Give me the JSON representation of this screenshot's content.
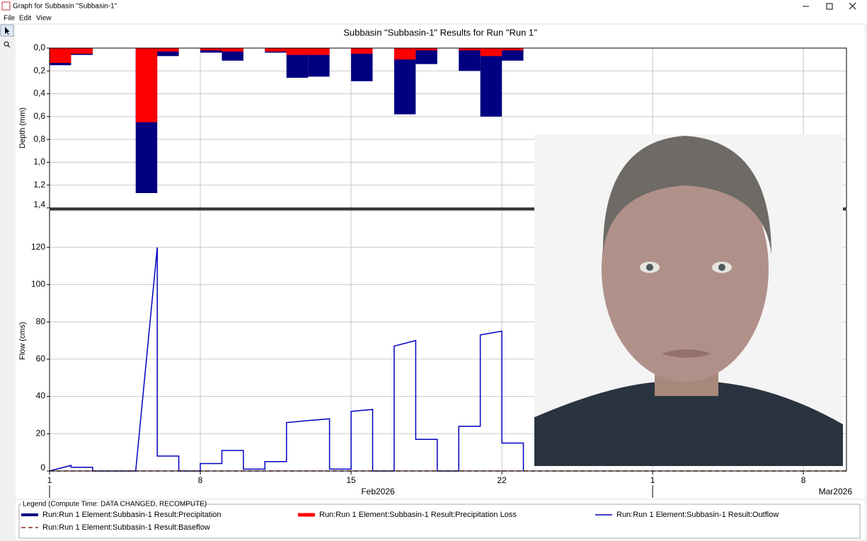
{
  "window": {
    "title": "Graph for Subbasin \"Subbasin-1\"",
    "menu": [
      "File",
      "Edit",
      "View"
    ]
  },
  "chart_data": [
    {
      "type": "bar",
      "title": "Subbasin \"Subbasin-1\" Results for Run \"Run 1\"",
      "y_label": "Depth (mm)",
      "y_inverted": true,
      "x": [
        "2026-02-01",
        "2026-02-02",
        "2026-02-05",
        "2026-02-06",
        "2026-02-08",
        "2026-02-09",
        "2026-02-11",
        "2026-02-12",
        "2026-02-13",
        "2026-02-15",
        "2026-02-17",
        "2026-02-18",
        "2026-02-20",
        "2026-02-21",
        "2026-02-22"
      ],
      "series": [
        {
          "name": "Run:Run 1 Element:Subbasin-1 Result:Precipitation",
          "color": "#000080",
          "values": [
            0.15,
            0.06,
            1.27,
            0.07,
            0.04,
            0.11,
            0.04,
            0.26,
            0.25,
            0.29,
            0.58,
            0.14,
            0.2,
            0.6,
            0.11
          ]
        },
        {
          "name": "Run:Run 1 Element:Subbasin-1 Result:Precipitation Loss",
          "color": "#ff0000",
          "values": [
            0.13,
            0.05,
            0.65,
            0.03,
            0.02,
            0.03,
            0.03,
            0.06,
            0.06,
            0.05,
            0.1,
            0.02,
            0.02,
            0.07,
            0.02
          ]
        }
      ],
      "xlim": [
        "2026-02-01",
        "2026-03-10"
      ],
      "ylim": [
        0,
        1.4
      ],
      "yticks": [
        {
          "value": 0,
          "label": "0,0"
        },
        {
          "value": 0.2,
          "label": "0,2"
        },
        {
          "value": 0.4,
          "label": "0,4"
        },
        {
          "value": 0.6,
          "label": "0,6"
        },
        {
          "value": 0.8,
          "label": "0,8"
        },
        {
          "value": 1.0,
          "label": "1,0"
        },
        {
          "value": 1.2,
          "label": "1,2"
        },
        {
          "value": 1.4,
          "label": "1,4"
        }
      ],
      "grid": true
    },
    {
      "type": "line",
      "y_label": "Flow (cms)",
      "series": [
        {
          "name": "Run:Run 1 Element:Subbasin-1 Result:Outflow",
          "color": "#0000c0",
          "dashed": false,
          "x": [
            "2026-02-01",
            "2026-02-02",
            "2026-02-02",
            "2026-02-03",
            "2026-02-03",
            "2026-02-05",
            "2026-02-06",
            "2026-02-06",
            "2026-02-07",
            "2026-02-07",
            "2026-02-08",
            "2026-02-08",
            "2026-02-09",
            "2026-02-09",
            "2026-02-10",
            "2026-02-10",
            "2026-02-11",
            "2026-02-11",
            "2026-02-12",
            "2026-02-12",
            "2026-02-13",
            "2026-02-14",
            "2026-02-14",
            "2026-02-15",
            "2026-02-15",
            "2026-02-16",
            "2026-02-16",
            "2026-02-17",
            "2026-02-17",
            "2026-02-18",
            "2026-02-18",
            "2026-02-19",
            "2026-02-19",
            "2026-02-20",
            "2026-02-20",
            "2026-02-21",
            "2026-02-21",
            "2026-02-22",
            "2026-02-22",
            "2026-02-23",
            "2026-02-23"
          ],
          "values": [
            0,
            3,
            2,
            2,
            0,
            0,
            120,
            8,
            8,
            0,
            0,
            4,
            4,
            11,
            11,
            1,
            1,
            5,
            5,
            26,
            27,
            28,
            1,
            1,
            32,
            33,
            0,
            0,
            67,
            70,
            17,
            17,
            0,
            0,
            24,
            24,
            73,
            75,
            15,
            15,
            0
          ]
        },
        {
          "name": "Run:Run 1 Element:Subbasin-1 Result:Baseflow",
          "color": "#8b2a1a",
          "dashed": true,
          "x": [
            "2026-02-01",
            "2026-03-10"
          ],
          "values": [
            0,
            0
          ]
        }
      ],
      "xlim": [
        "2026-02-01",
        "2026-03-10"
      ],
      "ylim": [
        0,
        140
      ],
      "yticks": [
        0,
        20,
        40,
        60,
        80,
        100,
        120
      ],
      "xticks": [
        {
          "value": "2026-02-01",
          "label": "1"
        },
        {
          "value": "2026-02-08",
          "label": "8"
        },
        {
          "value": "2026-02-15",
          "label": "15"
        },
        {
          "value": "2026-02-22",
          "label": "22"
        },
        {
          "value": "2026-03-01",
          "label": "1"
        },
        {
          "value": "2026-03-08",
          "label": "8"
        }
      ],
      "x_group_labels": [
        "Feb2026",
        "Mar2026"
      ],
      "grid": true
    }
  ],
  "legend": {
    "title": "Legend (Compute Time: DATA CHANGED, RECOMPUTE)"
  }
}
